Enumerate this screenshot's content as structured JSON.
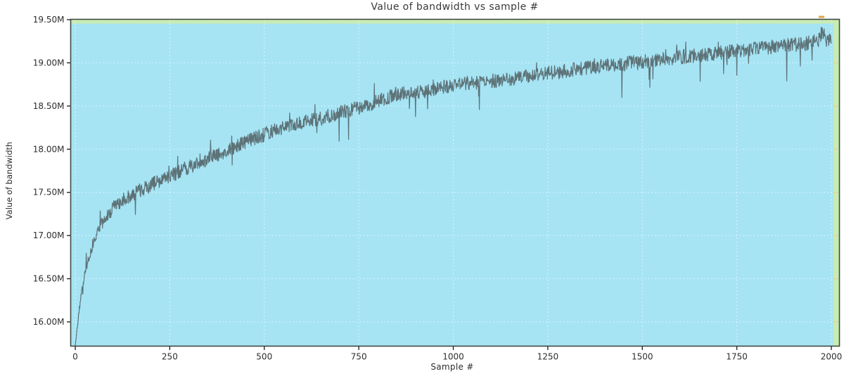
{
  "chart_data": {
    "type": "line",
    "title": "Value of bandwidth vs sample #",
    "xlabel": "Sample #",
    "ylabel": "Value of bandwidth",
    "xlim": [
      -13,
      2020
    ],
    "ylim": [
      15.72,
      19.51
    ],
    "grid": true,
    "legend": "none",
    "x_ticks": [
      {
        "label": "0",
        "value": 0
      },
      {
        "label": "250",
        "value": 250
      },
      {
        "label": "500",
        "value": 500
      },
      {
        "label": "750",
        "value": 750
      },
      {
        "label": "1000",
        "value": 1000
      },
      {
        "label": "1250",
        "value": 1250
      },
      {
        "label": "1500",
        "value": 1500
      },
      {
        "label": "1750",
        "value": 1750
      },
      {
        "label": "2000",
        "value": 2000
      }
    ],
    "y_ticks": [
      {
        "label": "16.00M",
        "value": 16.0
      },
      {
        "label": "16.50M",
        "value": 16.5
      },
      {
        "label": "17.00M",
        "value": 17.0
      },
      {
        "label": "17.50M",
        "value": 17.5
      },
      {
        "label": "18.00M",
        "value": 18.0
      },
      {
        "label": "18.50M",
        "value": 18.5
      },
      {
        "label": "19.00M",
        "value": 19.0
      },
      {
        "label": "19.50M",
        "value": 19.5
      }
    ],
    "unit": "M",
    "highlight_span": {
      "x_end": 2005,
      "y_top": 19.455,
      "note": "cyan data region over pale-green axes background"
    },
    "series": [
      {
        "name": "bandwidth",
        "n_points": 2000,
        "trend_anchors": [
          [
            0,
            15.72
          ],
          [
            3,
            15.85
          ],
          [
            8,
            16.05
          ],
          [
            15,
            16.3
          ],
          [
            25,
            16.55
          ],
          [
            40,
            16.8
          ],
          [
            55,
            17.0
          ],
          [
            75,
            17.18
          ],
          [
            100,
            17.32
          ],
          [
            130,
            17.42
          ],
          [
            170,
            17.52
          ],
          [
            220,
            17.63
          ],
          [
            270,
            17.73
          ],
          [
            330,
            17.85
          ],
          [
            400,
            17.98
          ],
          [
            460,
            18.1
          ],
          [
            530,
            18.22
          ],
          [
            620,
            18.33
          ],
          [
            700,
            18.42
          ],
          [
            780,
            18.52
          ],
          [
            845,
            18.63
          ],
          [
            920,
            18.67
          ],
          [
            1000,
            18.74
          ],
          [
            1080,
            18.78
          ],
          [
            1160,
            18.82
          ],
          [
            1250,
            18.88
          ],
          [
            1350,
            18.94
          ],
          [
            1450,
            18.99
          ],
          [
            1550,
            19.04
          ],
          [
            1650,
            19.09
          ],
          [
            1750,
            19.14
          ],
          [
            1850,
            19.19
          ],
          [
            1930,
            19.22
          ],
          [
            1965,
            19.26
          ],
          [
            1972,
            19.32
          ],
          [
            1978,
            19.38
          ],
          [
            1985,
            19.26
          ],
          [
            2000,
            19.27
          ]
        ],
        "noise": {
          "seed": 42,
          "amp": 0.085,
          "spike_prob": 0.02,
          "spike_scale": 0.3,
          "up_prob": 0.012,
          "up_scale": 0.13
        }
      }
    ],
    "colors": {
      "plot_bg": "#c9ecb4",
      "span_bg": "#a6e4f4",
      "line": "#5d7277",
      "border": "#3f4a41",
      "grid": "#ffffff",
      "accent_marks": "#e09a2e",
      "text": "#2d2d2d"
    }
  }
}
